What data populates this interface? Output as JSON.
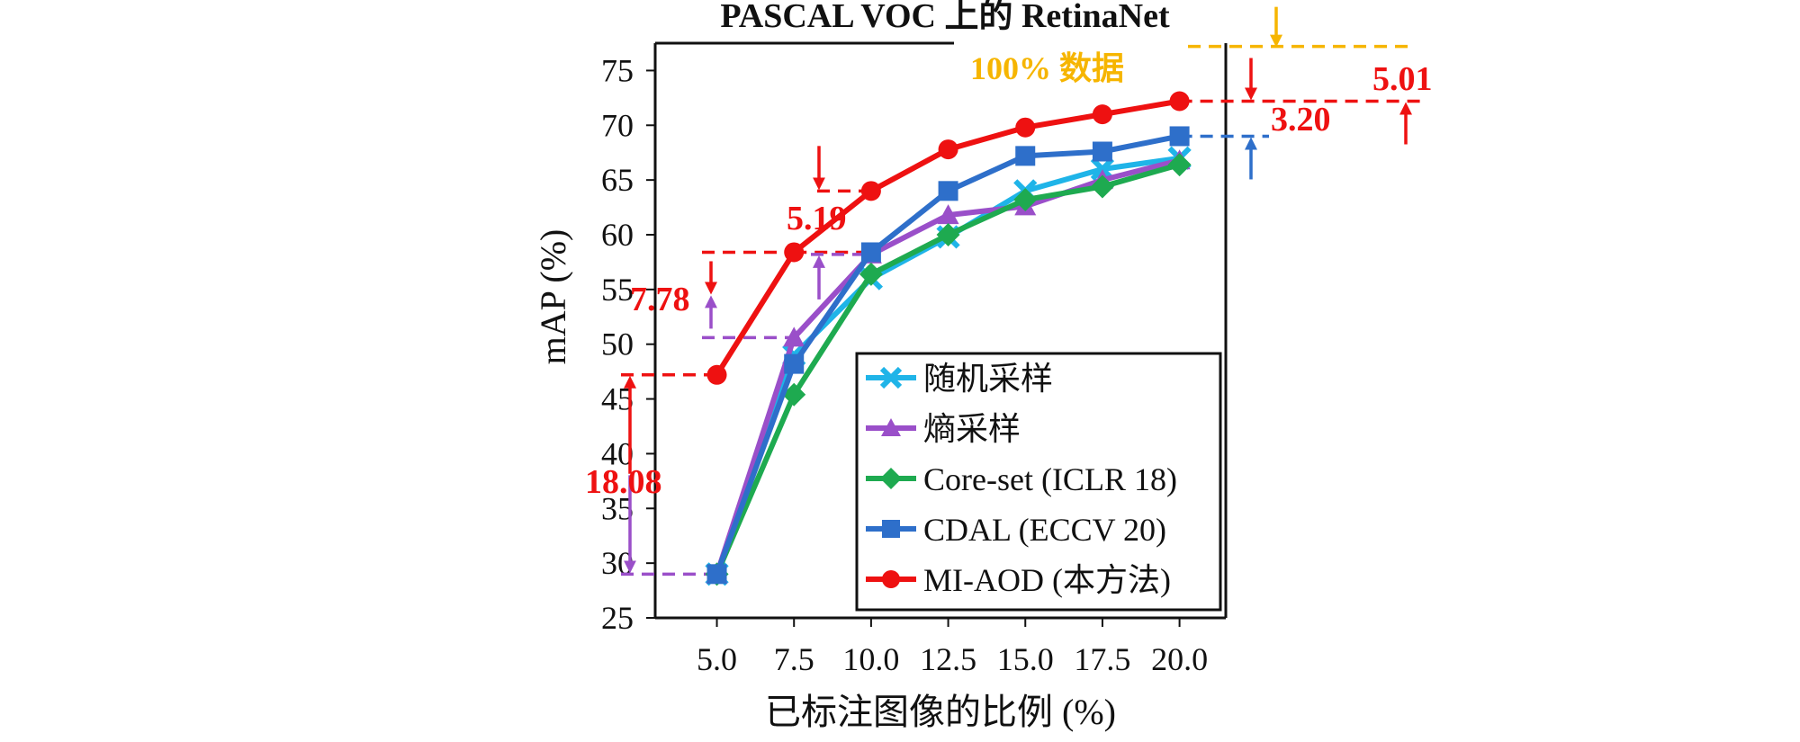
{
  "chart_data": {
    "type": "line",
    "title": "PASCAL VOC 上的 RetinaNet",
    "xlabel": "已标注图像的比例 (%)",
    "ylabel": "mAP (%)",
    "x": [
      5.0,
      7.5,
      10.0,
      12.5,
      15.0,
      17.5,
      20.0
    ],
    "x_tick_labels": [
      "5.0",
      "7.5",
      "10.0",
      "12.5",
      "15.0",
      "17.5",
      "20.0"
    ],
    "xlim": [
      3.0,
      21.5
    ],
    "ylim": [
      25,
      77.5
    ],
    "y_ticks": [
      "25",
      "30",
      "35",
      "40",
      "45",
      "50",
      "55",
      "60",
      "65",
      "70",
      "75"
    ],
    "grid": false,
    "legend_position": "bottom-right",
    "series": [
      {
        "name": "随机采样",
        "color": "#1fb4e8",
        "marker": "x",
        "values": [
          29.0,
          49.0,
          56.0,
          59.8,
          64.0,
          66.0,
          67.0
        ]
      },
      {
        "name": "熵采样",
        "color": "#9a4fc9",
        "marker": "triangle",
        "values": [
          29.0,
          50.6,
          58.2,
          61.8,
          62.6,
          65.0,
          66.8
        ]
      },
      {
        "name": "Core-set (ICLR 18)",
        "color": "#1eaa50",
        "marker": "diamond",
        "values": [
          29.0,
          45.4,
          56.4,
          60.0,
          63.2,
          64.4,
          66.4
        ]
      },
      {
        "name": "CDAL (ECCV 20)",
        "color": "#2e6fca",
        "marker": "square",
        "values": [
          29.0,
          48.2,
          58.4,
          64.0,
          67.2,
          67.6,
          69.0
        ]
      },
      {
        "name": "MI-AOD (本方法)",
        "color": "#ee1111",
        "marker": "circle",
        "values": [
          47.2,
          58.4,
          64.0,
          67.8,
          69.8,
          71.0,
          72.2
        ]
      }
    ],
    "annotations": {
      "full_data_label": "100%  数据",
      "full_data_value": 77.2,
      "gap_labels": [
        "18.08",
        "7.78",
        "5.19",
        "3.20",
        "5.01"
      ]
    }
  }
}
